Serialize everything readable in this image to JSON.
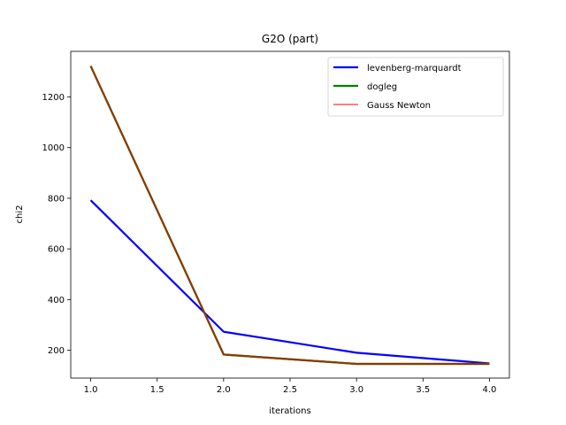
{
  "chart_data": {
    "type": "line",
    "title": "G2O (part)",
    "xlabel": "iterations",
    "ylabel": "chi2",
    "xlim": [
      0.85,
      4.15
    ],
    "ylim": [
      90,
      1380
    ],
    "xticks": [
      1.0,
      1.5,
      2.0,
      2.5,
      3.0,
      3.5,
      4.0
    ],
    "xtick_labels": [
      "1.0",
      "1.5",
      "2.0",
      "2.5",
      "3.0",
      "3.5",
      "4.0"
    ],
    "yticks": [
      200,
      400,
      600,
      800,
      1000,
      1200
    ],
    "ytick_labels": [
      "200",
      "400",
      "600",
      "800",
      "1000",
      "1200"
    ],
    "grid": false,
    "legend_position": "top-right",
    "x": [
      1,
      2,
      3,
      4
    ],
    "series": [
      {
        "name": "levenberg-marquardt",
        "color": "#0000ff",
        "values": [
          792,
          273,
          190,
          148
        ]
      },
      {
        "name": "dogleg",
        "color": "#008000",
        "values": [
          1322,
          183,
          146,
          146
        ]
      },
      {
        "name": "Gauss Newton",
        "color": "#ff0000",
        "values": [
          1322,
          183,
          146,
          146
        ]
      }
    ],
    "overlap_color": "#8b3a00"
  }
}
